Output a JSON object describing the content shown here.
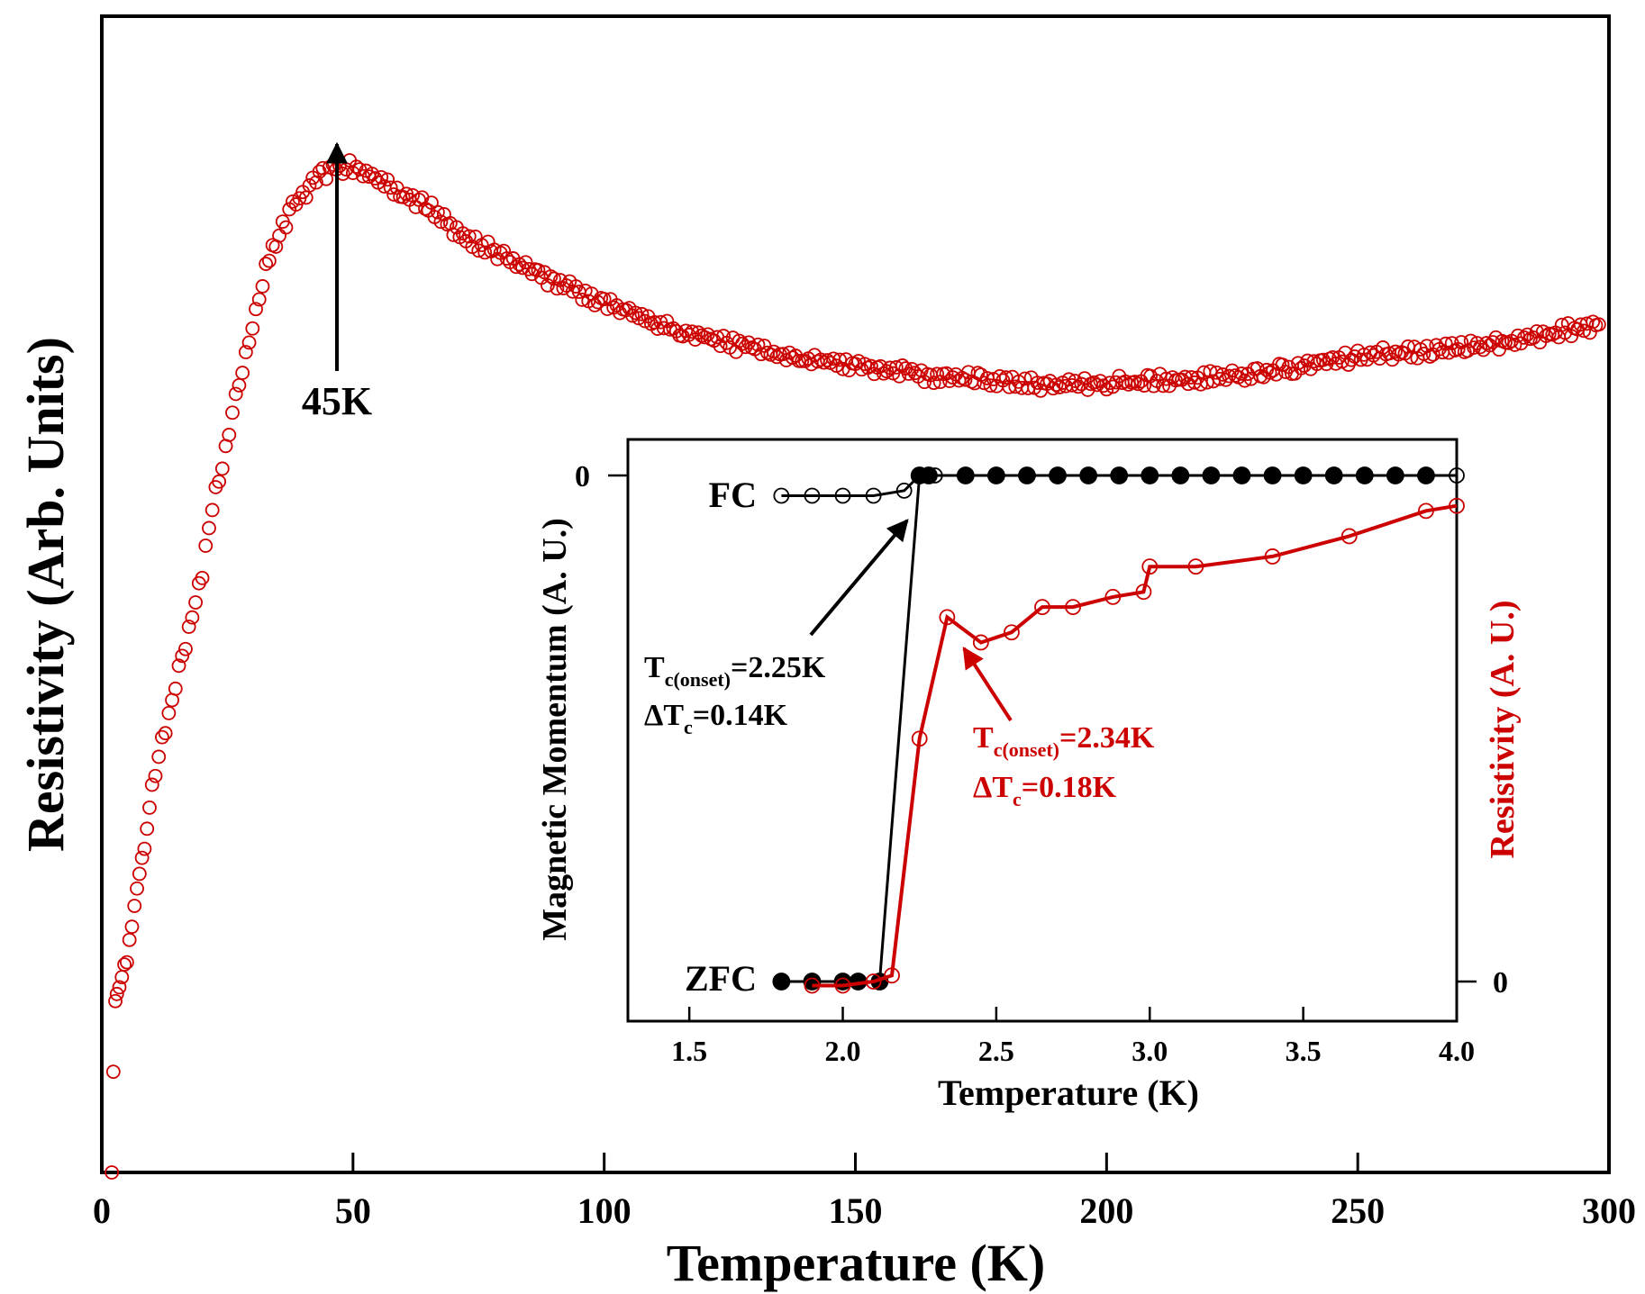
{
  "colors": {
    "axis": "#000000",
    "resistivity": "#cc0000",
    "magnetic": "#000000"
  },
  "chart_data": [
    {
      "type": "scatter",
      "title": "",
      "xlabel": "Temperature (K)",
      "ylabel": "Resistivity (Arb. Units)",
      "xlim": [
        0,
        300
      ],
      "ylim": [
        0,
        1
      ],
      "xticks": [
        0,
        50,
        100,
        150,
        200,
        250,
        300
      ],
      "xtick_labels": [
        "0",
        "50",
        "100",
        "150",
        "200",
        "250",
        "300"
      ],
      "marker": "open-circle",
      "annotation": {
        "label": "45K",
        "x": 47,
        "arrow_to_y": 0.88
      },
      "series": [
        {
          "points": [
            [
              2,
              0.0
            ],
            [
              2.3,
              0.1
            ],
            [
              2.7,
              0.16
            ],
            [
              3,
              0.17
            ],
            [
              3.5,
              0.175
            ],
            [
              4,
              0.185
            ],
            [
              5,
              0.2
            ],
            [
              6,
              0.23
            ],
            [
              7,
              0.26
            ],
            [
              8,
              0.29
            ],
            [
              9,
              0.32
            ],
            [
              10,
              0.36
            ],
            [
              12,
              0.4
            ],
            [
              14,
              0.44
            ],
            [
              16,
              0.48
            ],
            [
              18,
              0.52
            ],
            [
              20,
              0.56
            ],
            [
              22,
              0.62
            ],
            [
              24,
              0.66
            ],
            [
              26,
              0.71
            ],
            [
              28,
              0.75
            ],
            [
              30,
              0.79
            ],
            [
              32,
              0.83
            ],
            [
              34,
              0.86
            ],
            [
              36,
              0.88
            ],
            [
              38,
              0.9
            ],
            [
              40,
              0.91
            ],
            [
              42,
              0.92
            ],
            [
              44,
              0.93
            ],
            [
              46,
              0.935
            ],
            [
              48,
              0.937
            ],
            [
              50,
              0.936
            ],
            [
              52,
              0.93
            ],
            [
              55,
              0.925
            ],
            [
              60,
              0.91
            ],
            [
              65,
              0.9
            ],
            [
              70,
              0.88
            ],
            [
              75,
              0.865
            ],
            [
              80,
              0.855
            ],
            [
              85,
              0.84
            ],
            [
              90,
              0.83
            ],
            [
              95,
              0.82
            ],
            [
              100,
              0.81
            ],
            [
              105,
              0.8
            ],
            [
              110,
              0.79
            ],
            [
              115,
              0.785
            ],
            [
              120,
              0.78
            ],
            [
              125,
              0.772
            ],
            [
              130,
              0.768
            ],
            [
              135,
              0.763
            ],
            [
              140,
              0.758
            ],
            [
              145,
              0.755
            ],
            [
              150,
              0.752
            ],
            [
              155,
              0.748
            ],
            [
              160,
              0.745
            ],
            [
              165,
              0.742
            ],
            [
              170,
              0.74
            ],
            [
              175,
              0.738
            ],
            [
              180,
              0.736
            ],
            [
              185,
              0.735
            ],
            [
              190,
              0.735
            ],
            [
              195,
              0.735
            ],
            [
              200,
              0.735
            ],
            [
              205,
              0.736
            ],
            [
              210,
              0.738
            ],
            [
              215,
              0.739
            ],
            [
              220,
              0.74
            ],
            [
              225,
              0.742
            ],
            [
              230,
              0.745
            ],
            [
              235,
              0.748
            ],
            [
              240,
              0.752
            ],
            [
              245,
              0.756
            ],
            [
              250,
              0.76
            ],
            [
              255,
              0.762
            ],
            [
              260,
              0.764
            ],
            [
              265,
              0.766
            ],
            [
              270,
              0.768
            ],
            [
              275,
              0.771
            ],
            [
              280,
              0.774
            ],
            [
              285,
              0.778
            ],
            [
              290,
              0.783
            ],
            [
              295,
              0.787
            ],
            [
              298,
              0.79
            ]
          ]
        }
      ]
    },
    {
      "type": "line",
      "title": "",
      "xlabel": "Temperature (K)",
      "ylabel": "Magnetic Momentum (A. U.)",
      "y2label": "Resistivity (A. U.)",
      "xlim": [
        1.3,
        4.0
      ],
      "ylim": [
        0,
        1
      ],
      "xticks": [
        1.5,
        2.0,
        2.5,
        3.0,
        3.5,
        4.0
      ],
      "xtick_labels": [
        "1.5",
        "2.0",
        "2.5",
        "3.0",
        "3.5",
        "4.0"
      ],
      "yticks": [
        1
      ],
      "ytick_labels": [
        "0"
      ],
      "y2ticks": [
        0
      ],
      "y2tick_labels": [
        "0"
      ],
      "series": [
        {
          "name": "FC",
          "marker": "open-circle",
          "x": [
            1.8,
            1.9,
            2.0,
            2.1,
            2.2,
            2.25,
            2.3,
            2.4,
            2.5,
            2.6,
            2.7,
            2.8,
            2.9,
            3.0,
            3.1,
            3.2,
            3.3,
            3.4,
            3.5,
            3.6,
            3.7,
            3.8,
            3.9,
            4.0
          ],
          "y": [
            0.96,
            0.96,
            0.96,
            0.96,
            0.97,
            1.0,
            1.0,
            1.0,
            1.0,
            1.0,
            1.0,
            1.0,
            1.0,
            1.0,
            1.0,
            1.0,
            1.0,
            1.0,
            1.0,
            1.0,
            1.0,
            1.0,
            1.0,
            1.0
          ]
        },
        {
          "name": "ZFC",
          "marker": "filled-circle",
          "x": [
            1.8,
            1.9,
            2.0,
            2.05,
            2.12,
            2.25,
            2.28,
            2.4,
            2.5,
            2.6,
            2.7,
            2.8,
            2.9,
            3.0,
            3.1,
            3.2,
            3.3,
            3.4,
            3.5,
            3.6,
            3.7,
            3.8,
            3.9
          ],
          "y": [
            0.0,
            0.0,
            0.0,
            0.0,
            0.0,
            1.0,
            1.0,
            1.0,
            1.0,
            1.0,
            1.0,
            1.0,
            1.0,
            1.0,
            1.0,
            1.0,
            1.0,
            1.0,
            1.0,
            1.0,
            1.0,
            1.0,
            1.0
          ]
        },
        {
          "name": "Resistivity",
          "marker": "open-circle",
          "axis": "right",
          "x": [
            1.9,
            2.0,
            2.1,
            2.16,
            2.25,
            2.34,
            2.45,
            2.55,
            2.65,
            2.75,
            2.88,
            2.98,
            3.0,
            3.15,
            3.4,
            3.65,
            3.9,
            4.0
          ],
          "y": [
            -0.008,
            -0.008,
            0.0,
            0.012,
            0.48,
            0.72,
            0.67,
            0.69,
            0.74,
            0.74,
            0.76,
            0.77,
            0.82,
            0.82,
            0.84,
            0.88,
            0.93,
            0.94
          ]
        }
      ],
      "annotations": [
        {
          "label_main": "T",
          "label_sub": "c(onset)",
          "label_rest": "=2.25K",
          "line2_main": "ΔT",
          "line2_sub": "c",
          "line2_rest": "=0.14K",
          "color": "black"
        },
        {
          "label_main": "T",
          "label_sub": "c(onset)",
          "label_rest": "=2.34K",
          "line2_main": "ΔT",
          "line2_sub": "c",
          "line2_rest": "=0.18K",
          "color": "red"
        }
      ]
    }
  ]
}
